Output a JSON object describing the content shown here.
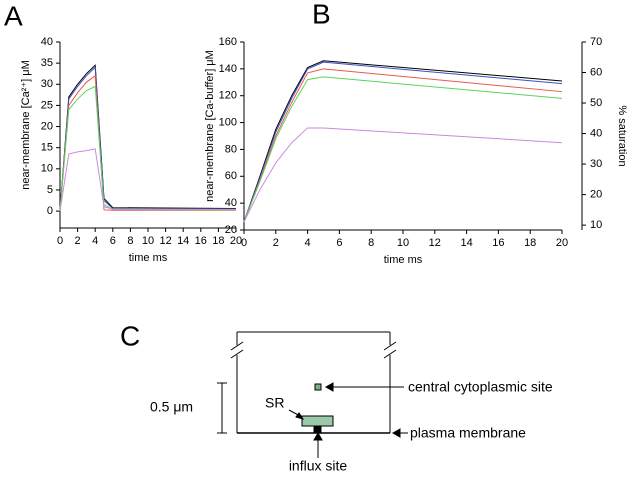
{
  "chart_data": [
    {
      "type": "line",
      "panel": "A",
      "x_label": "time ms",
      "y_label": "near-membrane [Ca²⁺] μM",
      "x": [
        0,
        1,
        2,
        3,
        4,
        5,
        6,
        20
      ],
      "xlim": [
        0,
        20
      ],
      "xticks": [
        0,
        2,
        4,
        6,
        8,
        10,
        12,
        14,
        16,
        18,
        20
      ],
      "ylim": [
        -4,
        40
      ],
      "yticks": [
        0,
        5,
        10,
        15,
        20,
        25,
        30,
        35,
        40
      ],
      "series": [
        {
          "color": "#000000",
          "values": [
            0,
            27,
            30,
            32.5,
            34.5,
            3,
            0.8,
            0.6
          ]
        },
        {
          "color": "#3b4fbf",
          "values": [
            0,
            26.5,
            29.5,
            32,
            34,
            2.5,
            0.6,
            0.5
          ]
        },
        {
          "color": "#e8584e",
          "values": [
            0,
            25,
            28,
            30.5,
            32,
            0.3,
            0.2,
            0.2
          ]
        },
        {
          "color": "#5ad45a",
          "values": [
            0,
            24,
            26.5,
            28.5,
            29.5,
            1.5,
            0.4,
            0.3
          ]
        },
        {
          "color": "#cc88dd",
          "values": [
            0,
            13.5,
            14,
            14.3,
            14.7,
            1,
            0.5,
            0.4
          ]
        }
      ]
    },
    {
      "type": "line",
      "panel": "B",
      "x_label": "time ms",
      "y_label": "near-membrane [Ca-buffer] μM",
      "y2_label": "% saturation",
      "x": [
        0,
        1,
        2,
        3,
        4,
        5,
        20
      ],
      "xlim": [
        0,
        20
      ],
      "xticks": [
        0,
        2,
        4,
        6,
        8,
        10,
        12,
        14,
        16,
        18,
        20
      ],
      "ylim": [
        20,
        160
      ],
      "yticks": [
        20,
        40,
        60,
        80,
        100,
        120,
        140,
        160
      ],
      "y2lim": [
        8.4,
        70
      ],
      "y2ticks": [
        10,
        20,
        30,
        40,
        50,
        60,
        70
      ],
      "series": [
        {
          "color": "#000000",
          "values": [
            26,
            60,
            95,
            120,
            141,
            146,
            131
          ]
        },
        {
          "color": "#3b4fbf",
          "values": [
            26,
            59,
            93,
            118,
            140,
            145,
            129
          ]
        },
        {
          "color": "#e8584e",
          "values": [
            26,
            57,
            90,
            115,
            137,
            140,
            123
          ]
        },
        {
          "color": "#5ad45a",
          "values": [
            26,
            56,
            88,
            112,
            132,
            134,
            118
          ]
        },
        {
          "color": "#cc88dd",
          "values": [
            26,
            50,
            70,
            85,
            96,
            96,
            85
          ]
        }
      ]
    }
  ],
  "diagram": {
    "panel": "C",
    "scale": "0.5 μm",
    "sr": "SR",
    "central": "central cytoplasmic site",
    "membrane": "plasma membrane",
    "influx": "influx site"
  }
}
